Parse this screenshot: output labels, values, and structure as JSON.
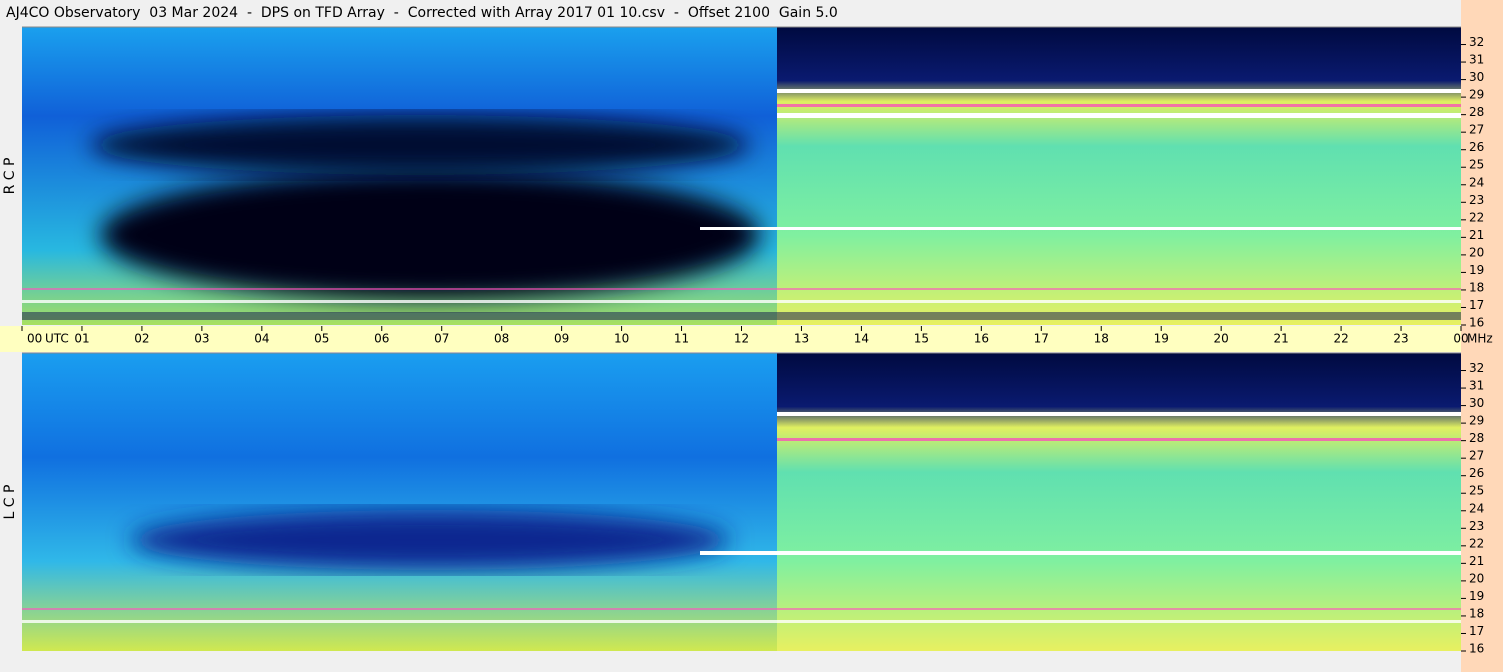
{
  "title": "AJ4CO Observatory  03 Mar 2024  -  DPS on TFD Array  -  Corrected with Array 2017 01 10.csv  -  Offset 2100  Gain 5.0",
  "x_axis": {
    "label": "UTC",
    "xlim": [
      0,
      24
    ],
    "xticks": [
      {
        "value": 0,
        "label": "00"
      },
      {
        "value": 1,
        "label": "01"
      },
      {
        "value": 2,
        "label": "02"
      },
      {
        "value": 3,
        "label": "03"
      },
      {
        "value": 4,
        "label": "04"
      },
      {
        "value": 5,
        "label": "05"
      },
      {
        "value": 6,
        "label": "06"
      },
      {
        "value": 7,
        "label": "07"
      },
      {
        "value": 8,
        "label": "08"
      },
      {
        "value": 9,
        "label": "09"
      },
      10,
      11,
      12,
      13,
      14,
      15,
      16,
      17,
      18,
      19,
      20,
      21,
      22,
      23,
      {
        "value": 24,
        "label": "00"
      }
    ]
  },
  "y_axis_label": "MHz",
  "chart_data": [
    {
      "type": "heatmap",
      "panel_label": "R C P",
      "ylim": [
        16,
        33
      ],
      "yticks": [
        16,
        17,
        18,
        19,
        20,
        21,
        22,
        23,
        24,
        25,
        26,
        27,
        28,
        29,
        30,
        31,
        32
      ]
    },
    {
      "type": "heatmap",
      "panel_label": "L C P",
      "ylim": [
        16,
        33
      ],
      "yticks": [
        16,
        17,
        18,
        19,
        20,
        21,
        22,
        23,
        24,
        25,
        26,
        27,
        28,
        29,
        30,
        31,
        32
      ]
    }
  ]
}
